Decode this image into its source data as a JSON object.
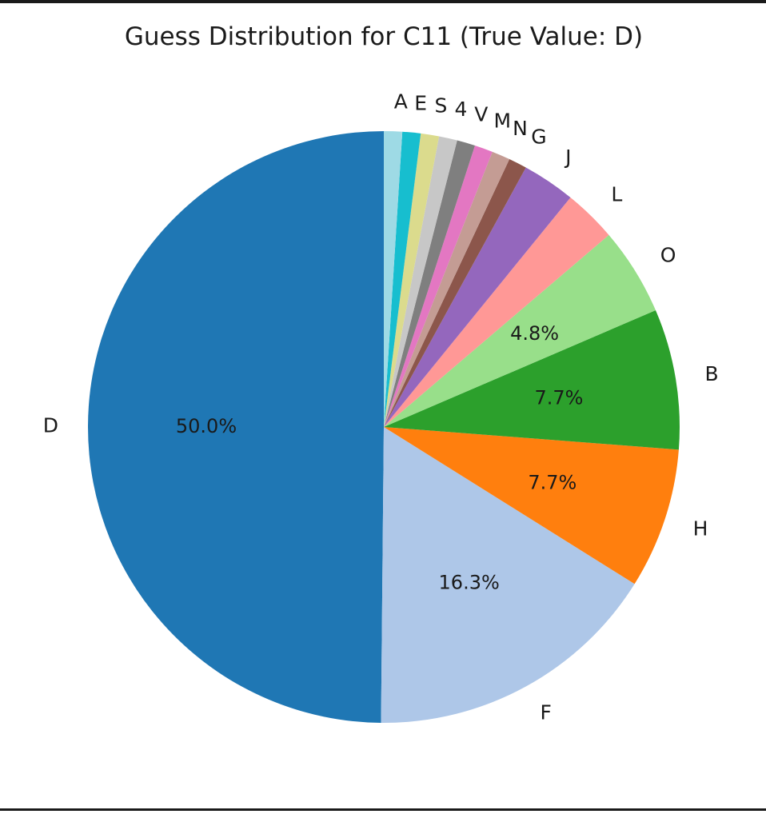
{
  "chart_data": {
    "type": "pie",
    "title": "Guess Distribution for C11 (True Value: D)",
    "start_angle_deg": 90,
    "direction": "counterclockwise",
    "slices": [
      {
        "label": "D",
        "value": 50.0,
        "pct_label": "50.0%",
        "color": "#1f77b4"
      },
      {
        "label": "F",
        "value": 16.3,
        "pct_label": "16.3%",
        "color": "#aec7e8"
      },
      {
        "label": "H",
        "value": 7.7,
        "pct_label": "7.7%",
        "color": "#ff7f0e"
      },
      {
        "label": "B",
        "value": 7.7,
        "pct_label": "7.7%",
        "color": "#2ca02c"
      },
      {
        "label": "O",
        "value": 4.8,
        "pct_label": "4.8%",
        "color": "#98df8a"
      },
      {
        "label": "L",
        "value": 2.9,
        "pct_label": "",
        "color": "#ff9896"
      },
      {
        "label": "J",
        "value": 2.9,
        "pct_label": "",
        "color": "#9467bd"
      },
      {
        "label": "G",
        "value": 1.0,
        "pct_label": "",
        "color": "#8c564b"
      },
      {
        "label": "N",
        "value": 1.0,
        "pct_label": "",
        "color": "#c49c94"
      },
      {
        "label": "M",
        "value": 1.0,
        "pct_label": "",
        "color": "#e377c2"
      },
      {
        "label": "V",
        "value": 1.0,
        "pct_label": "",
        "color": "#7f7f7f"
      },
      {
        "label": "4",
        "value": 1.0,
        "pct_label": "",
        "color": "#c7c7c7"
      },
      {
        "label": "S",
        "value": 1.0,
        "pct_label": "",
        "color": "#dbdb8d"
      },
      {
        "label": "E",
        "value": 1.0,
        "pct_label": "",
        "color": "#17becf"
      },
      {
        "label": "A",
        "value": 1.0,
        "pct_label": "",
        "color": "#9edae5"
      }
    ]
  }
}
